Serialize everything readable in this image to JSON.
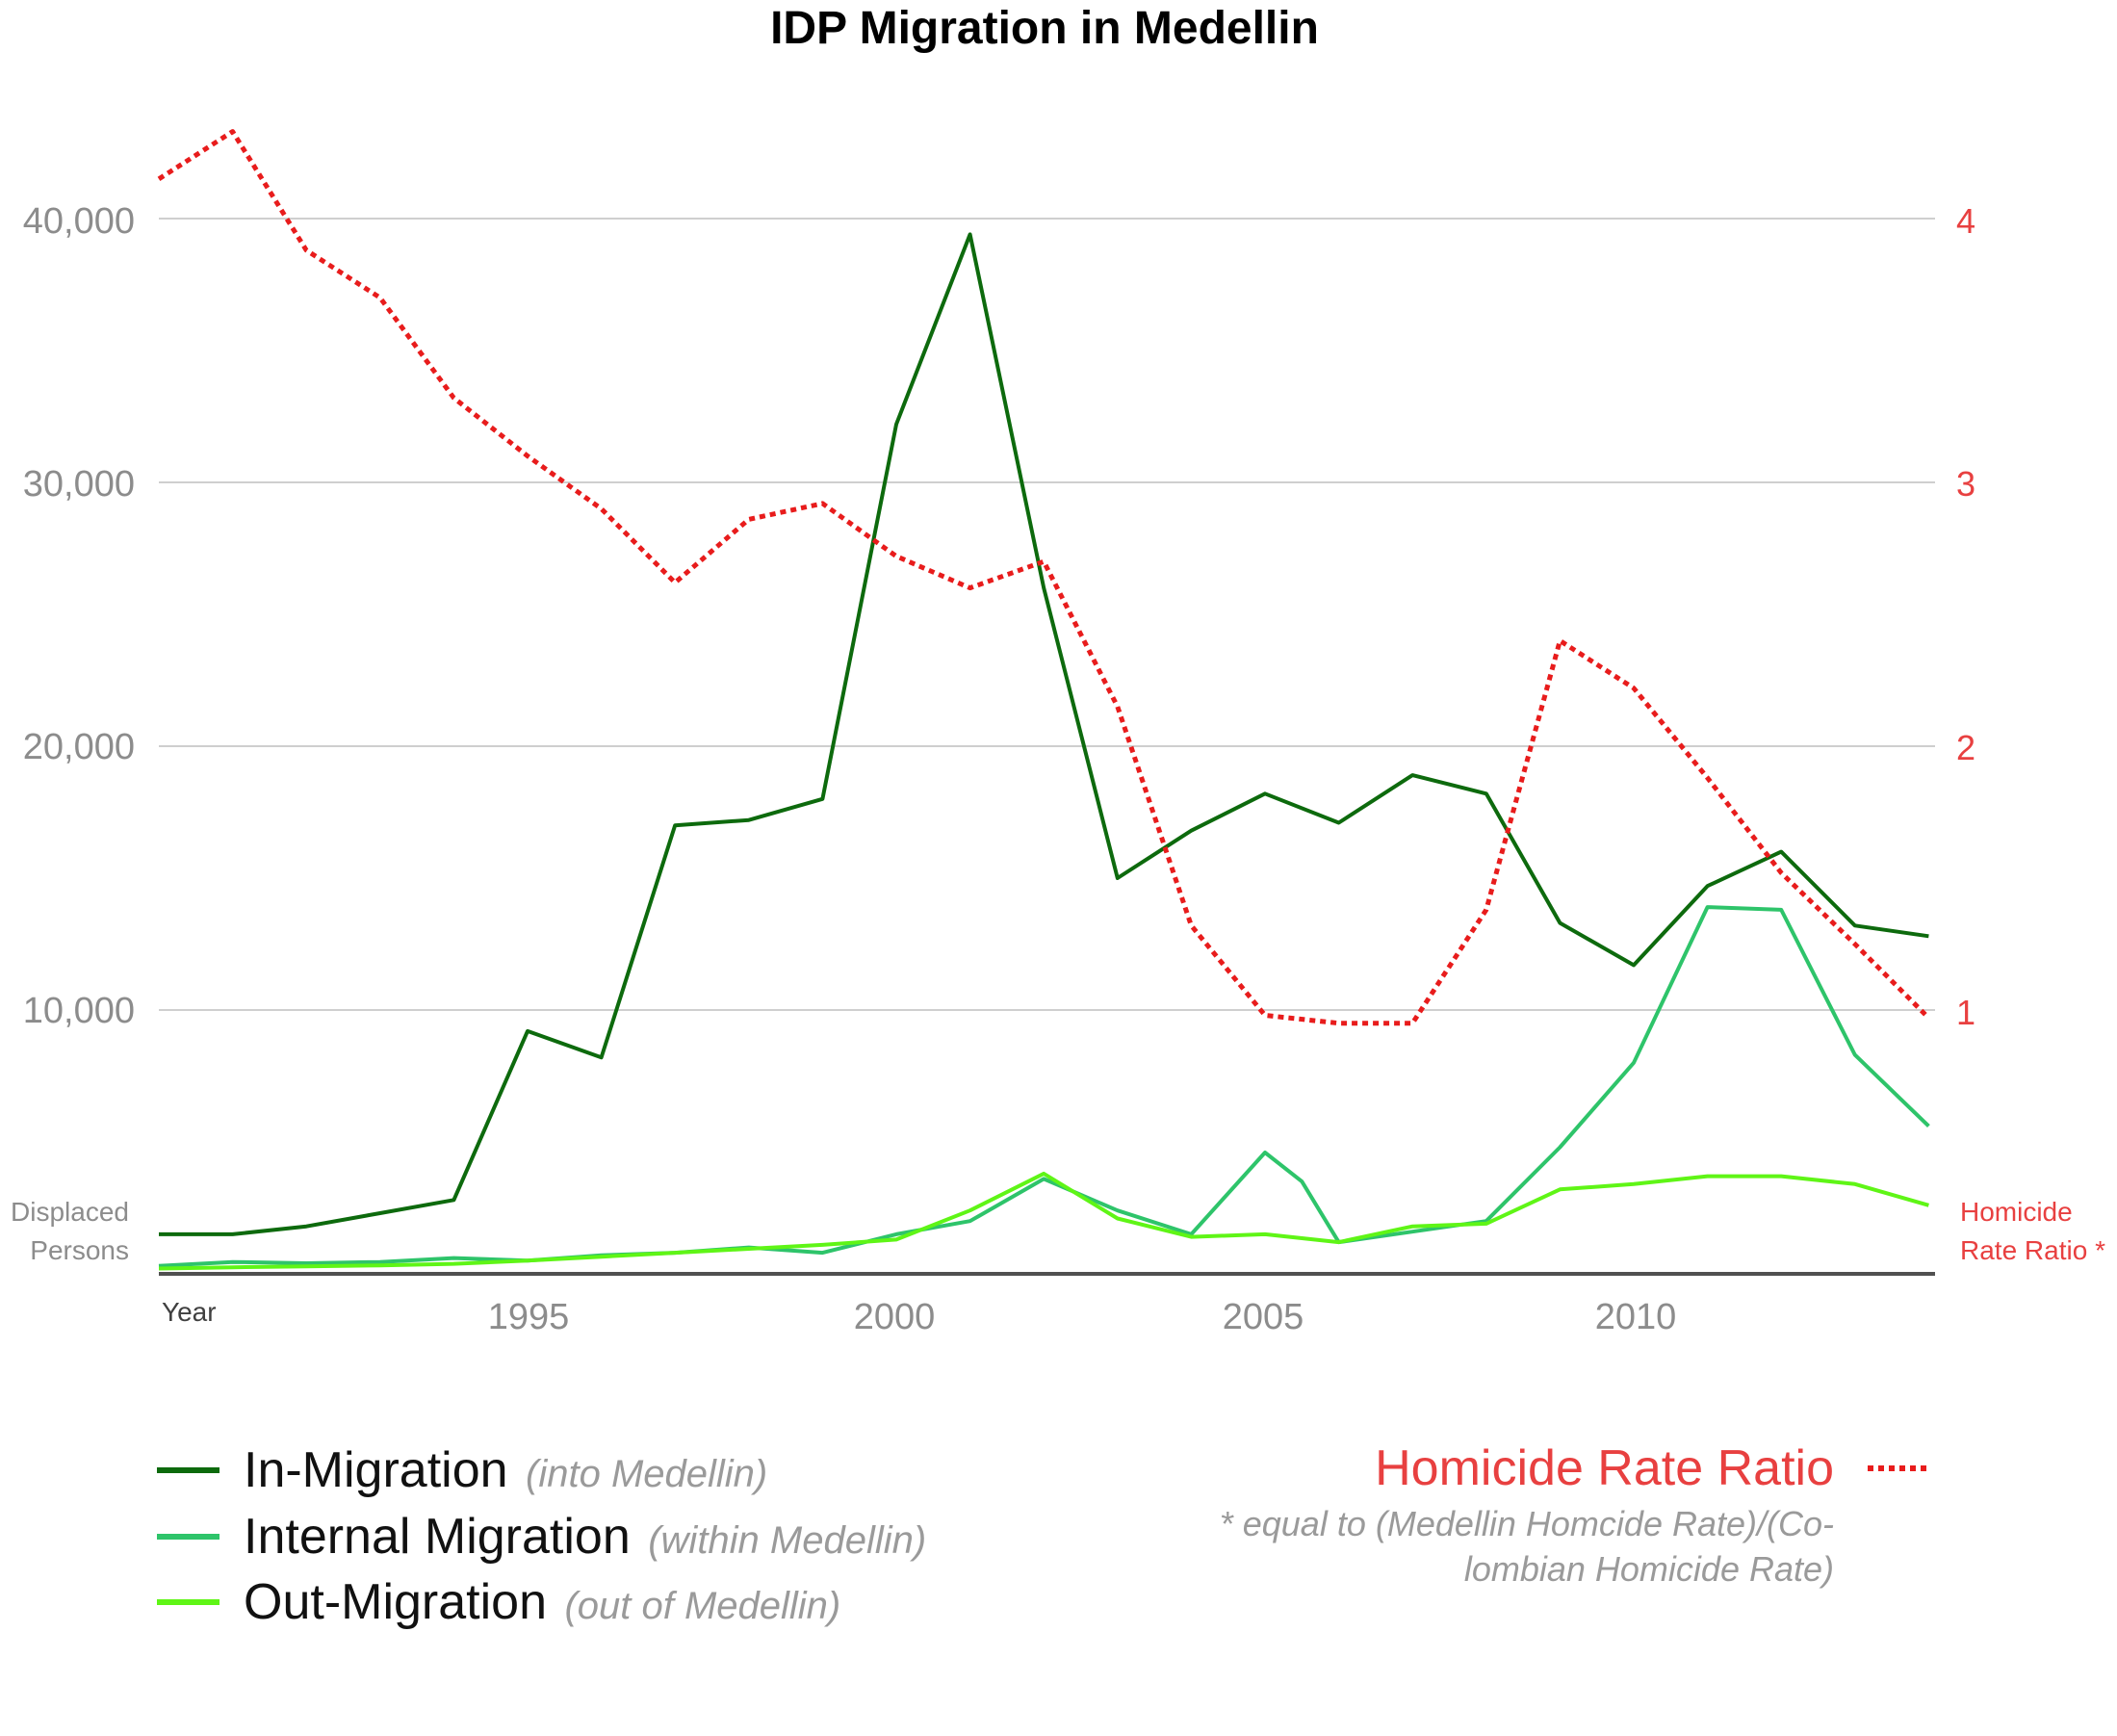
{
  "chart_data": {
    "type": "line",
    "title": "IDP Migration in Medellin",
    "y_left_label_lines": [
      "Displaced",
      "Persons"
    ],
    "y_right_label_lines": [
      "Homicide",
      "Rate Ratio *"
    ],
    "x_axis_label": "Year",
    "x_ticks": [
      "1995",
      "2000",
      "2005",
      "2010"
    ],
    "y_left_ticks": [
      "10,000",
      "20,000",
      "30,000",
      "40,000"
    ],
    "y_right_ticks": [
      "1",
      "2",
      "3",
      "4"
    ],
    "ylim_left": [
      0,
      40000
    ],
    "ylim_right": [
      0,
      4
    ],
    "grid": true,
    "series": [
      {
        "name": "In-Migration",
        "axis": "left",
        "color": "#0d6a0d",
        "x": [
          1990,
          1991,
          1992,
          1993,
          1994,
          1995,
          1996,
          1997,
          1998,
          1999,
          2000,
          2001,
          2002,
          2003,
          2004,
          2005,
          2006,
          2007,
          2008,
          2009,
          2010,
          2011,
          2012,
          2013,
          2014
        ],
        "values": [
          1500,
          1500,
          1800,
          2300,
          2800,
          9200,
          8200,
          17000,
          17200,
          18000,
          32200,
          39400,
          26000,
          15000,
          16800,
          18200,
          17100,
          18900,
          18200,
          13300,
          11700,
          14700,
          16000,
          13200,
          12800
        ]
      },
      {
        "name": "Internal Migration",
        "axis": "left",
        "color": "#2ec46a",
        "x": [
          1990,
          1991,
          1992,
          1993,
          1994,
          1995,
          1996,
          1997,
          1998,
          1999,
          2000,
          2001,
          2002,
          2003,
          2004,
          2005,
          2005.5,
          2006,
          2007,
          2008,
          2009,
          2010,
          2011,
          2012,
          2013,
          2014
        ],
        "values": [
          300,
          450,
          400,
          450,
          600,
          500,
          700,
          800,
          1000,
          800,
          1500,
          2000,
          3600,
          2400,
          1500,
          4600,
          3500,
          1200,
          1600,
          2000,
          4800,
          8000,
          13900,
          13800,
          8300,
          5600
        ]
      },
      {
        "name": "Out-Migration",
        "axis": "left",
        "color": "#5ff516",
        "x": [
          1990,
          1991,
          1992,
          1993,
          1994,
          1995,
          1996,
          1997,
          1998,
          1999,
          2000,
          2001,
          2002,
          2003,
          2004,
          2005,
          2006,
          2007,
          2008,
          2009,
          2010,
          2011,
          2012,
          2013,
          2014
        ],
        "values": [
          200,
          250,
          280,
          320,
          380,
          500,
          650,
          800,
          950,
          1100,
          1300,
          2400,
          3800,
          2100,
          1400,
          1500,
          1200,
          1800,
          1900,
          3200,
          3400,
          3700,
          3700,
          3400,
          2600
        ]
      },
      {
        "name": "Homicide Rate Ratio",
        "axis": "right",
        "color": "#e81c1c",
        "dashed": true,
        "x": [
          1990,
          1991,
          1992,
          1993,
          1994,
          1995,
          1996,
          1997,
          1998,
          1999,
          2000,
          2001,
          2002,
          2003,
          2004,
          2005,
          2006,
          2007,
          2008,
          2009,
          2010,
          2011,
          2012,
          2013,
          2014
        ],
        "values": [
          4.15,
          4.33,
          3.88,
          3.7,
          3.32,
          3.1,
          2.9,
          2.62,
          2.86,
          2.92,
          2.72,
          2.6,
          2.7,
          2.15,
          1.32,
          0.98,
          0.95,
          0.95,
          1.38,
          2.4,
          2.22,
          1.88,
          1.52,
          1.25,
          0.97
        ]
      }
    ],
    "legend": {
      "items": [
        {
          "label": "In-Migration",
          "sub": "(into Medellin)"
        },
        {
          "label": "Internal Migration",
          "sub": "(within Medellin)"
        },
        {
          "label": "Out-Migration",
          "sub": "(out of  Medellin)"
        }
      ],
      "right_label": "Homicide Rate Ratio",
      "note_lines": [
        "* equal to (Medellin Homcide Rate)/(Co-",
        "lombian Homicide Rate)"
      ]
    }
  }
}
